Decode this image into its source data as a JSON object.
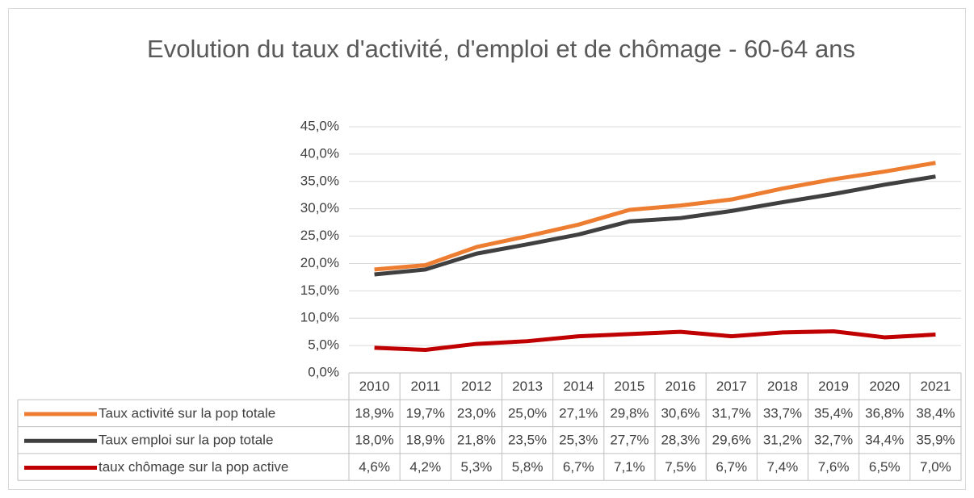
{
  "chart_data": {
    "type": "line",
    "title": "Evolution du taux d'activité, d'emploi et de chômage - 60-64 ans",
    "categories": [
      "2010",
      "2011",
      "2012",
      "2013",
      "2014",
      "2015",
      "2016",
      "2017",
      "2018",
      "2019",
      "2020",
      "2021"
    ],
    "series": [
      {
        "name": "Taux activité sur la pop totale",
        "color": "#ed7d31",
        "values": [
          18.9,
          19.7,
          23.0,
          25.0,
          27.1,
          29.8,
          30.6,
          31.7,
          33.7,
          35.4,
          36.8,
          38.4
        ],
        "value_labels": [
          "18,9%",
          "19,7%",
          "23,0%",
          "25,0%",
          "27,1%",
          "29,8%",
          "30,6%",
          "31,7%",
          "33,7%",
          "35,4%",
          "36,8%",
          "38,4%"
        ]
      },
      {
        "name": "Taux emploi sur la pop totale",
        "color": "#404040",
        "values": [
          18.0,
          18.9,
          21.8,
          23.5,
          25.3,
          27.7,
          28.3,
          29.6,
          31.2,
          32.7,
          34.4,
          35.9
        ],
        "value_labels": [
          "18,0%",
          "18,9%",
          "21,8%",
          "23,5%",
          "25,3%",
          "27,7%",
          "28,3%",
          "29,6%",
          "31,2%",
          "32,7%",
          "34,4%",
          "35,9%"
        ]
      },
      {
        "name": "taux chômage sur la pop active",
        "color": "#c00000",
        "values": [
          4.6,
          4.2,
          5.3,
          5.8,
          6.7,
          7.1,
          7.5,
          6.7,
          7.4,
          7.6,
          6.5,
          7.0
        ],
        "value_labels": [
          "4,6%",
          "4,2%",
          "5,3%",
          "5,8%",
          "6,7%",
          "7,1%",
          "7,5%",
          "6,7%",
          "7,4%",
          "7,6%",
          "6,5%",
          "7,0%"
        ]
      }
    ],
    "ylim": [
      0,
      45
    ],
    "yticks": [
      {
        "value": 0,
        "label": "0,0%"
      },
      {
        "value": 5,
        "label": "5,0%"
      },
      {
        "value": 10,
        "label": "10,0%"
      },
      {
        "value": 15,
        "label": "15,0%"
      },
      {
        "value": 20,
        "label": "20,0%"
      },
      {
        "value": 25,
        "label": "25,0%"
      },
      {
        "value": 30,
        "label": "30,0%"
      },
      {
        "value": 35,
        "label": "35,0%"
      },
      {
        "value": 40,
        "label": "40,0%"
      },
      {
        "value": 45,
        "label": "45,0%"
      }
    ],
    "grid": true
  }
}
